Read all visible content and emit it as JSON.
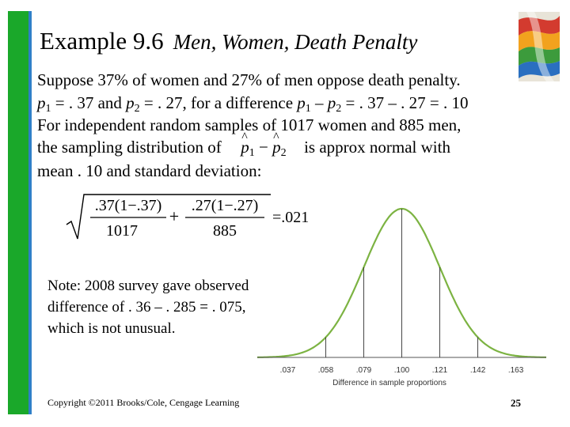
{
  "title": {
    "main": "Example 9.6",
    "sub": "Men, Women, Death Penalty"
  },
  "body": {
    "line1": "Suppose 37% of women and 27% of men oppose death penalty.",
    "line2_p1": "p",
    "line2_s1": "1",
    "line2_a": " = . 37 and ",
    "line2_p2": "p",
    "line2_s2": "2",
    "line2_b": " = . 27, for a difference ",
    "line2_p3": "p",
    "line2_s3": "1",
    "line2_c": " – ",
    "line2_p4": "p",
    "line2_s4": "2",
    "line2_d": " = . 37 – . 27 = . 10",
    "line3": "For independent random samples of 1017 women and 885 men,",
    "line4_a": "the sampling distribution of",
    "line4_b": "is approx normal with",
    "line5": "mean . 10 and standard deviation:"
  },
  "formula": {
    "num1": ".37(1−.37)",
    "den1": "1017",
    "plus": "+",
    "num2": ".27(1−.27)",
    "den2": "885",
    "result": "=.021",
    "phat1": "p",
    "sub1": "1",
    "minus": "−",
    "phat2": "p",
    "sub2": "2"
  },
  "note": {
    "line1": "Note: 2008 survey gave observed",
    "line2": "difference of . 36 – . 285 = . 075,",
    "line3": "which is not unusual."
  },
  "chart_data": {
    "type": "area",
    "x_ticks": [
      ".037",
      ".058",
      ".079",
      ".100",
      ".121",
      ".142",
      ".163"
    ],
    "xlabel": "Difference in sample proportions",
    "mean": 0.1,
    "sd": 0.021,
    "curve_color": "#7cb342"
  },
  "footer": {
    "copyright": "Copyright ©2011 Brooks/Cole, Cengage Learning",
    "page": "25"
  }
}
